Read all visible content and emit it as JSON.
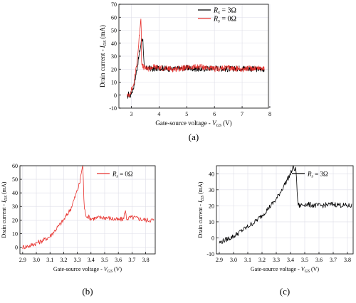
{
  "chart_data": [
    {
      "type": "line",
      "caption": "(a)",
      "xlabel": "Gate-source voltage - V_GS (V)",
      "ylabel": "Drain current - I_DS (mA)",
      "xlim": [
        2.55,
        7.95
      ],
      "ylim": [
        -10,
        70
      ],
      "xticks": [
        3,
        4,
        5,
        6,
        7,
        8
      ],
      "yticks": [
        -10,
        0,
        10,
        20,
        30,
        40,
        50,
        60,
        70
      ],
      "grid": true,
      "legend": "top-right",
      "series": [
        {
          "name": "R_s = 3Ω",
          "color": "#000000",
          "x": [
            2.85,
            2.9,
            2.95,
            3.0,
            3.05,
            3.1,
            3.15,
            3.2,
            3.25,
            3.3,
            3.35,
            3.38,
            3.42,
            3.46,
            3.5,
            3.6,
            3.8,
            4.0,
            4.5,
            5.0,
            5.5,
            6.0,
            6.5,
            7.0,
            7.5,
            7.8
          ],
          "y": [
            -2,
            1,
            -1,
            2,
            4,
            8,
            14,
            20,
            27,
            33,
            40,
            44,
            42,
            22,
            20,
            21,
            20,
            21,
            20,
            21,
            20,
            21,
            20,
            21,
            20,
            20
          ]
        },
        {
          "name": "R_s = 0Ω",
          "color": "#e8322e",
          "x": [
            2.85,
            2.9,
            2.95,
            3.0,
            3.05,
            3.1,
            3.15,
            3.2,
            3.25,
            3.3,
            3.33,
            3.35,
            3.37,
            3.4,
            3.5,
            3.6,
            3.8,
            4.0,
            4.5,
            5.0,
            5.5,
            6.0,
            6.5,
            7.0,
            7.5,
            7.8
          ],
          "y": [
            0,
            -1,
            2,
            4,
            6,
            10,
            18,
            25,
            36,
            48,
            58,
            60,
            26,
            22,
            21,
            20,
            22,
            21,
            20,
            21,
            22,
            20,
            21,
            20,
            21,
            21
          ]
        }
      ]
    },
    {
      "type": "line",
      "caption": "(b)",
      "xlabel": "Gate-source voltage - V_GS (V)",
      "ylabel": "Drain current - I_DS (mA)",
      "xlim": [
        2.88,
        3.87
      ],
      "ylim": [
        -5,
        60
      ],
      "xticks": [
        2.9,
        3.0,
        3.1,
        3.2,
        3.3,
        3.4,
        3.5,
        3.6,
        3.7,
        3.8
      ],
      "yticks": [
        0,
        10,
        20,
        30,
        40,
        50,
        60
      ],
      "grid": true,
      "legend": "top-right",
      "series": [
        {
          "name": "R_s = 0Ω",
          "color": "#e8322e",
          "x": [
            2.9,
            2.95,
            3.0,
            3.05,
            3.1,
            3.15,
            3.2,
            3.25,
            3.28,
            3.3,
            3.32,
            3.33,
            3.34,
            3.35,
            3.36,
            3.4,
            3.5,
            3.6,
            3.64,
            3.65,
            3.66,
            3.7,
            3.8,
            3.86
          ],
          "y": [
            0,
            1,
            3,
            5,
            8,
            14,
            20,
            28,
            36,
            42,
            48,
            56,
            60,
            30,
            24,
            21,
            22,
            20,
            21,
            28,
            21,
            22,
            20,
            20
          ]
        }
      ]
    },
    {
      "type": "line",
      "caption": "(c)",
      "xlabel": "Gate-source voltage - V_GS (V)",
      "ylabel": "Drain current - I_DS (mA)",
      "xlim": [
        2.88,
        3.84
      ],
      "ylim": [
        -10,
        45
      ],
      "xticks": [
        2.9,
        3.0,
        3.1,
        3.2,
        3.3,
        3.4,
        3.5,
        3.6,
        3.7,
        3.8
      ],
      "yticks": [
        -10,
        0,
        10,
        20,
        30,
        40
      ],
      "grid": true,
      "legend": "top-right",
      "series": [
        {
          "name": "R_s = 3Ω",
          "color": "#000000",
          "x": [
            2.9,
            2.95,
            3.0,
            3.05,
            3.1,
            3.15,
            3.2,
            3.25,
            3.3,
            3.35,
            3.4,
            3.42,
            3.44,
            3.45,
            3.46,
            3.5,
            3.6,
            3.7,
            3.8,
            3.83
          ],
          "y": [
            -3,
            -1,
            1,
            4,
            7,
            10,
            14,
            19,
            24,
            32,
            40,
            44,
            42,
            22,
            20,
            21,
            20,
            21,
            20,
            20
          ]
        }
      ]
    }
  ]
}
